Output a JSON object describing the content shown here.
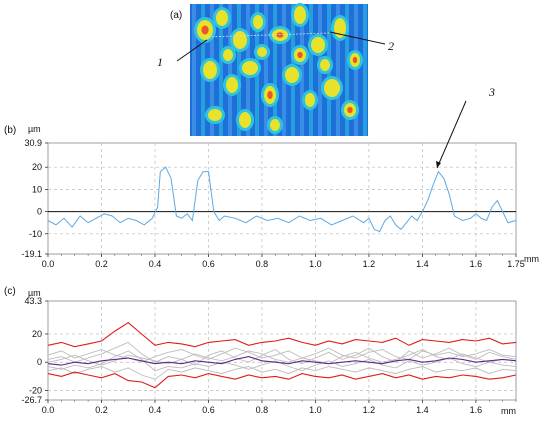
{
  "chart_data": [
    {
      "panel": "(a)",
      "type": "other",
      "annotations": [
        "1",
        "2"
      ],
      "colors": {
        "low": "#1e6fd9",
        "mid": "#2ec4e0",
        "high": "#e8e22a",
        "peak": "#e8582a"
      }
    },
    {
      "panel": "(b)",
      "type": "line",
      "ylabel": "µm",
      "xlabel": "mm",
      "xlim": [
        0,
        1.75
      ],
      "ylim": [
        -19.1,
        30.9
      ],
      "x_ticks": [
        "0.0",
        "0.2",
        "0.4",
        "0.6",
        "0.8",
        "1.0",
        "1.2",
        "1.4",
        "1.6",
        "1.75"
      ],
      "y_ticks": [
        "30.9",
        "20",
        "10",
        "0",
        "-10",
        "-19.1"
      ],
      "annotation": "3",
      "line_color": "#5aa9e6",
      "series": [
        {
          "x": [
            0,
            0.03,
            0.06,
            0.09,
            0.12,
            0.15,
            0.18,
            0.21,
            0.24,
            0.27,
            0.3,
            0.33,
            0.36,
            0.39,
            0.41,
            0.42,
            0.44,
            0.46,
            0.48,
            0.5,
            0.52,
            0.54,
            0.56,
            0.58,
            0.6,
            0.62,
            0.64,
            0.66,
            0.7,
            0.74,
            0.78,
            0.82,
            0.86,
            0.9,
            0.94,
            0.98,
            1.02,
            1.06,
            1.1,
            1.14,
            1.18,
            1.2,
            1.22,
            1.24,
            1.26,
            1.28,
            1.3,
            1.32,
            1.34,
            1.36,
            1.38,
            1.4,
            1.42,
            1.44,
            1.45,
            1.46,
            1.48,
            1.5,
            1.52,
            1.55,
            1.58,
            1.6,
            1.62,
            1.64,
            1.66,
            1.68,
            1.7,
            1.72,
            1.75
          ],
          "y": [
            -4,
            -6,
            -3,
            -7,
            -2,
            -5,
            -3,
            -1,
            -2,
            -5,
            -3,
            -4,
            -6,
            -3,
            2,
            18,
            20,
            15,
            -2,
            -3,
            -1,
            -4,
            14,
            18,
            18,
            0,
            -4,
            -2,
            -3,
            -5,
            -2,
            -4,
            -3,
            -5,
            -2,
            -4,
            -3,
            -6,
            -4,
            -2,
            -5,
            -3,
            -8,
            -9,
            -4,
            -2,
            -6,
            -8,
            -5,
            -2,
            -4,
            0,
            5,
            12,
            15,
            18,
            15,
            8,
            -2,
            -4,
            -3,
            -1,
            -3,
            -4,
            2,
            5,
            0,
            -5,
            -4
          ]
        }
      ]
    },
    {
      "panel": "(c)",
      "type": "line",
      "ylabel": "µm",
      "xlabel": "mm",
      "xlim": [
        0,
        1.75
      ],
      "ylim": [
        -26.7,
        43.3
      ],
      "x_ticks": [
        "0.0",
        "0.2",
        "0.4",
        "0.6",
        "0.8",
        "1.0",
        "1.2",
        "1.4",
        "1.6"
      ],
      "y_ticks": [
        "43.3",
        "20",
        "0",
        "-20",
        "-26.7"
      ],
      "series_colors": {
        "upper": "#e01b1b",
        "lower": "#e01b1b",
        "mean": "#5a2a8a",
        "profiles": "#bdbdbd"
      },
      "x": [
        0,
        0.05,
        0.1,
        0.15,
        0.2,
        0.25,
        0.3,
        0.35,
        0.4,
        0.45,
        0.5,
        0.55,
        0.6,
        0.65,
        0.7,
        0.75,
        0.8,
        0.85,
        0.9,
        0.95,
        1.0,
        1.05,
        1.1,
        1.15,
        1.2,
        1.25,
        1.3,
        1.35,
        1.4,
        1.45,
        1.5,
        1.55,
        1.6,
        1.65,
        1.7,
        1.75
      ],
      "series": [
        {
          "role": "upper",
          "values": [
            12,
            14,
            11,
            13,
            15,
            22,
            28,
            20,
            12,
            14,
            13,
            11,
            14,
            15,
            16,
            12,
            14,
            15,
            17,
            14,
            12,
            15,
            13,
            16,
            15,
            14,
            17,
            12,
            16,
            15,
            14,
            16,
            15,
            17,
            13,
            14
          ]
        },
        {
          "role": "lower",
          "values": [
            -8,
            -10,
            -7,
            -9,
            -11,
            -8,
            -13,
            -14,
            -18,
            -10,
            -9,
            -11,
            -8,
            -10,
            -12,
            -9,
            -11,
            -10,
            -12,
            -8,
            -10,
            -11,
            -9,
            -12,
            -10,
            -8,
            -11,
            -9,
            -12,
            -10,
            -11,
            -9,
            -10,
            -12,
            -11,
            -9
          ]
        },
        {
          "role": "mean",
          "values": [
            -1,
            -2,
            0,
            -1,
            1,
            2,
            3,
            1,
            -1,
            0,
            -1,
            1,
            0,
            -1,
            2,
            4,
            1,
            0,
            -1,
            1,
            0,
            -1,
            0,
            1,
            0,
            -1,
            1,
            2,
            0,
            1,
            3,
            2,
            0,
            1,
            2,
            1
          ]
        },
        {
          "role": "profile",
          "values": [
            2,
            4,
            0,
            3,
            6,
            10,
            14,
            6,
            0,
            4,
            2,
            -2,
            5,
            8,
            3,
            0,
            5,
            9,
            2,
            -1,
            3,
            7,
            2,
            5,
            10,
            4,
            0,
            8,
            3,
            6,
            10,
            5,
            2,
            7,
            4,
            2
          ]
        },
        {
          "role": "profile",
          "values": [
            -3,
            -5,
            -2,
            -4,
            -1,
            4,
            8,
            2,
            -6,
            -3,
            -4,
            -1,
            -3,
            0,
            -2,
            -5,
            -2,
            1,
            -3,
            -6,
            -2,
            1,
            -3,
            -1,
            2,
            -2,
            -4,
            1,
            -2,
            0,
            3,
            -1,
            -3,
            0,
            -2,
            -3
          ]
        },
        {
          "role": "profile",
          "values": [
            5,
            8,
            3,
            6,
            9,
            5,
            3,
            0,
            4,
            7,
            9,
            5,
            2,
            6,
            10,
            7,
            3,
            5,
            8,
            3,
            6,
            10,
            5,
            3,
            7,
            9,
            4,
            2,
            8,
            5,
            7,
            4,
            6,
            9,
            5,
            4
          ]
        },
        {
          "role": "profile",
          "values": [
            -6,
            -4,
            -8,
            -5,
            -3,
            -7,
            -4,
            -9,
            -12,
            -5,
            -7,
            -4,
            -6,
            -8,
            -5,
            -3,
            -7,
            -5,
            -8,
            -4,
            -6,
            -3,
            -5,
            -7,
            -4,
            -6,
            -8,
            -5,
            -3,
            -7,
            -5,
            -6,
            -4,
            -8,
            -5,
            -6
          ]
        },
        {
          "role": "profile",
          "values": [
            0,
            2,
            5,
            1,
            -2,
            1,
            5,
            3,
            1,
            -1,
            2,
            6,
            3,
            1,
            4,
            8,
            6,
            2,
            0,
            3,
            1,
            -1,
            4,
            7,
            3,
            0,
            2,
            5,
            9,
            4,
            2,
            6,
            3,
            0,
            2,
            1
          ]
        }
      ]
    }
  ]
}
